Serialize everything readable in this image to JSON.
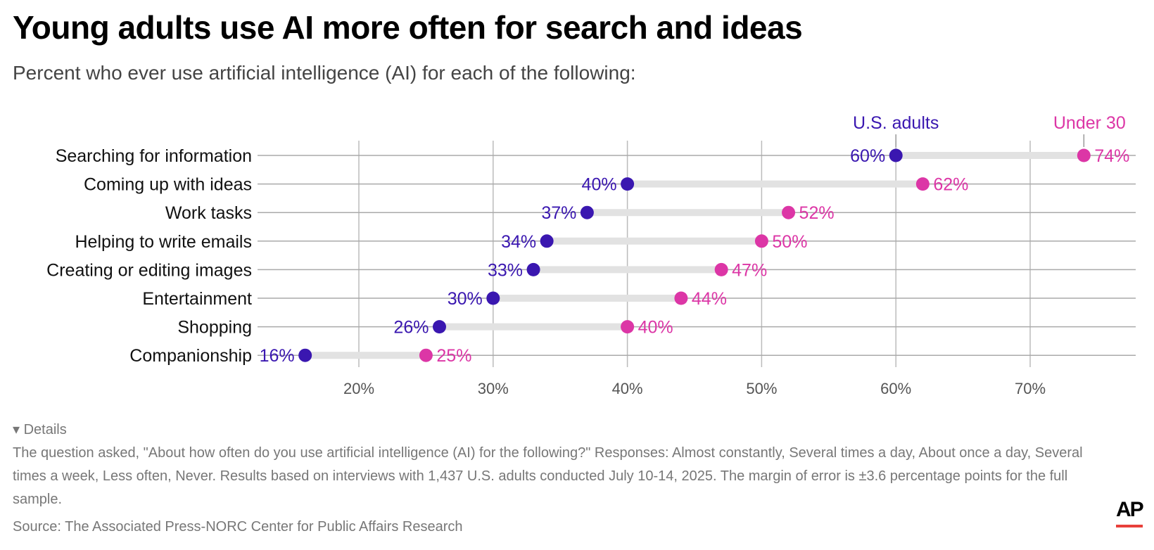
{
  "title": "Young adults use AI more often for search and ideas",
  "subtitle": "Percent who ever use artificial intelligence (AI) for each of the following:",
  "chart_data": {
    "type": "dumbbell",
    "categories": [
      "Searching for information",
      "Coming up with ideas",
      "Work tasks",
      "Helping to write emails",
      "Creating or editing images",
      "Entertainment",
      "Shopping",
      "Companionship"
    ],
    "series": [
      {
        "name": "U.S. adults",
        "color": "#3a17b0",
        "values": [
          60,
          40,
          37,
          34,
          33,
          30,
          26,
          16
        ]
      },
      {
        "name": "Under 30",
        "color": "#dc36a6",
        "values": [
          74,
          62,
          52,
          50,
          47,
          44,
          40,
          25
        ]
      }
    ],
    "xticks": [
      20,
      30,
      40,
      50,
      60,
      70
    ],
    "xtick_labels": [
      "20%",
      "30%",
      "40%",
      "50%",
      "60%",
      "70%"
    ],
    "xlim": [
      12.5,
      78
    ],
    "grid": true,
    "legend": "annotations above first row"
  },
  "details_label": "Details",
  "notes": "The question asked, \"About how often do you use artificial intelligence (AI) for the following?\" Responses: Almost constantly, Several times a day, About once a day, Several times a week, Less often, Never. Results based on interviews with 1,437 U.S. adults conducted July 10-14, 2025. The margin of error is ±3.6 percentage points for the full sample.",
  "source": "Source: The Associated Press-NORC Center for Public Affairs Research",
  "logo": "AP"
}
